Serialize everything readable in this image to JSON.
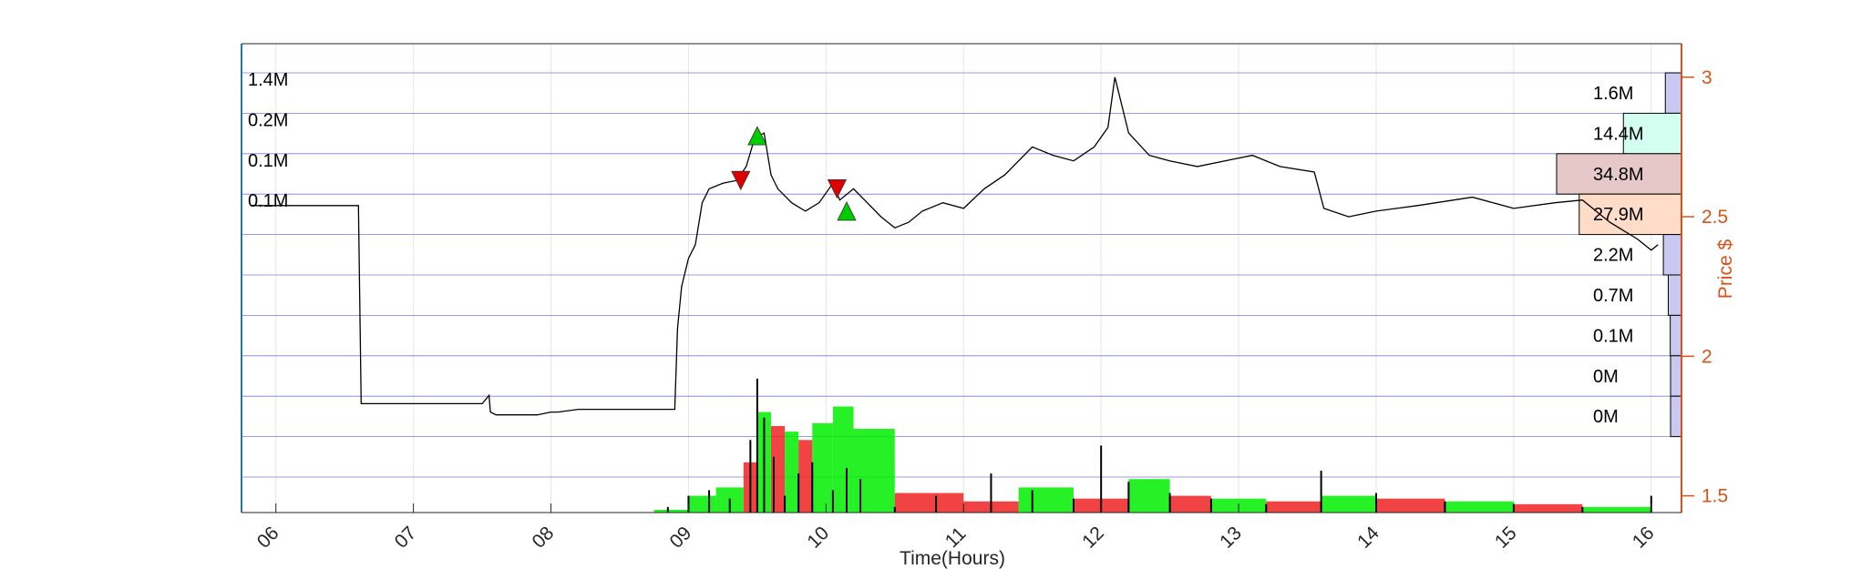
{
  "chart_data": {
    "type": "line",
    "xlabel": "Time(Hours)",
    "ylabel": "Price $",
    "x_ticks": [
      "06",
      "07",
      "08",
      "09",
      "10",
      "11",
      "12",
      "13",
      "14",
      "15",
      "16"
    ],
    "xlim": [
      5.75,
      16.22
    ],
    "ylim": [
      1.44,
      3.12
    ],
    "y_ticks": [
      "1.5",
      "2",
      "2.5",
      "3"
    ],
    "price_series": {
      "name": "Price",
      "x": [
        5.82,
        6.15,
        6.6,
        6.62,
        7.2,
        7.5,
        7.55,
        7.56,
        7.6,
        7.65,
        7.9,
        8.0,
        8.05,
        8.2,
        8.5,
        8.9,
        8.92,
        8.95,
        9.0,
        9.05,
        9.1,
        9.15,
        9.25,
        9.35,
        9.42,
        9.48,
        9.55,
        9.6,
        9.65,
        9.75,
        9.85,
        9.95,
        10.05,
        10.1,
        10.2,
        10.3,
        10.4,
        10.5,
        10.6,
        10.7,
        10.85,
        11.0,
        11.15,
        11.3,
        11.5,
        11.65,
        11.8,
        11.95,
        12.05,
        12.1,
        12.2,
        12.35,
        12.5,
        12.7,
        12.9,
        13.1,
        13.3,
        13.55,
        13.62,
        13.8,
        14.0,
        14.3,
        14.7,
        15.0,
        15.3,
        15.5,
        15.7,
        15.9,
        16.0,
        16.05
      ],
      "y": [
        2.54,
        2.54,
        2.54,
        1.83,
        1.83,
        1.83,
        1.86,
        1.8,
        1.79,
        1.79,
        1.79,
        1.8,
        1.8,
        1.81,
        1.81,
        1.81,
        2.1,
        2.25,
        2.35,
        2.4,
        2.55,
        2.6,
        2.62,
        2.63,
        2.68,
        2.78,
        2.8,
        2.65,
        2.6,
        2.55,
        2.52,
        2.55,
        2.62,
        2.56,
        2.6,
        2.55,
        2.5,
        2.46,
        2.48,
        2.52,
        2.55,
        2.53,
        2.6,
        2.65,
        2.75,
        2.72,
        2.7,
        2.75,
        2.82,
        3.0,
        2.8,
        2.72,
        2.7,
        2.68,
        2.7,
        2.72,
        2.68,
        2.66,
        2.53,
        2.5,
        2.52,
        2.54,
        2.57,
        2.53,
        2.55,
        2.56,
        2.48,
        2.42,
        2.38,
        2.4
      ]
    },
    "trade_markers": [
      {
        "type": "buy",
        "x": 9.5,
        "y": 2.79,
        "color": "#00cc00"
      },
      {
        "type": "sell",
        "x": 9.38,
        "y": 2.63,
        "color": "#dd0000"
      },
      {
        "type": "sell",
        "x": 10.08,
        "y": 2.6,
        "color": "#dd0000"
      },
      {
        "type": "buy",
        "x": 10.15,
        "y": 2.52,
        "color": "#00cc00"
      }
    ],
    "volume_profile": {
      "rows": [
        {
          "left_label": "1.4M",
          "right_label": "1.6M"
        },
        {
          "left_label": "0.2M",
          "right_label": "14.4M"
        },
        {
          "left_label": "0.1M",
          "right_label": "34.8M"
        },
        {
          "left_label": "0.1M",
          "right_label": "27.9M"
        },
        {
          "left_label": "",
          "right_label": "2.2M"
        },
        {
          "left_label": "",
          "right_label": "0.7M"
        },
        {
          "left_label": "",
          "right_label": "0.1M"
        },
        {
          "left_label": "",
          "right_label": "0M"
        },
        {
          "left_label": "",
          "right_label": "0M"
        }
      ],
      "right_values_m": [
        1.6,
        14.4,
        34.8,
        27.9,
        2.2,
        0.7,
        0.1,
        0,
        0
      ],
      "left_values_m": [
        1.4,
        0.2,
        0.1,
        0.1,
        0,
        0,
        0,
        0,
        0
      ],
      "fill_colors": [
        "#c8c8f0",
        "#d2fff0",
        "#e6c8c8",
        "#ffdcc8",
        "#c8c8f0",
        "#c8c8f0",
        "#c8c8f0",
        "#c8c8f0",
        "#c8c8f0"
      ]
    },
    "volume_bars": {
      "x": [
        8.85,
        9.0,
        9.15,
        9.3,
        9.45,
        9.5,
        9.55,
        9.62,
        9.7,
        9.8,
        9.9,
        10.05,
        10.15,
        10.25,
        10.5,
        10.8,
        11.2,
        11.5,
        11.8,
        12.0,
        12.2,
        12.5,
        12.8,
        13.2,
        13.6,
        14.0,
        14.5,
        15.0,
        15.5,
        16.0
      ],
      "y": [
        1.46,
        1.5,
        1.52,
        1.49,
        1.7,
        1.92,
        1.78,
        1.64,
        1.5,
        1.58,
        1.62,
        1.52,
        1.6,
        1.56,
        1.46,
        1.5,
        1.58,
        1.52,
        1.49,
        1.68,
        1.55,
        1.51,
        1.49,
        1.47,
        1.59,
        1.51,
        1.48,
        1.47,
        1.46,
        1.5
      ]
    },
    "vwap_blocks": {
      "x_start": [
        8.75,
        9.0,
        9.2,
        9.4,
        9.5,
        9.6,
        9.7,
        9.8,
        9.9,
        10.05,
        10.2,
        10.5,
        11.0,
        11.4,
        11.8,
        12.2,
        12.5,
        12.8,
        13.2,
        13.6,
        14.0,
        14.5,
        15.0,
        15.5
      ],
      "x_end": [
        9.0,
        9.2,
        9.4,
        9.5,
        9.6,
        9.7,
        9.8,
        9.9,
        10.05,
        10.2,
        10.5,
        11.0,
        11.4,
        11.8,
        12.2,
        12.5,
        12.8,
        13.2,
        13.6,
        14.0,
        14.5,
        15.0,
        15.5,
        16.0
      ],
      "y": [
        1.45,
        1.5,
        1.53,
        1.62,
        1.8,
        1.75,
        1.73,
        1.7,
        1.76,
        1.82,
        1.74,
        1.51,
        1.48,
        1.53,
        1.49,
        1.56,
        1.5,
        1.49,
        1.48,
        1.5,
        1.49,
        1.48,
        1.47,
        1.46
      ],
      "colors": [
        "#00ee00",
        "#00ee00",
        "#00ee00",
        "#ee2222",
        "#00ee00",
        "#ee2222",
        "#00ee00",
        "#ee2222",
        "#00ee00",
        "#00ee00",
        "#00ee00",
        "#ee2222",
        "#ee2222",
        "#00ee00",
        "#ee2222",
        "#00ee00",
        "#ee2222",
        "#00ee00",
        "#ee2222",
        "#00ee00",
        "#ee2222",
        "#00ee00",
        "#ee2222",
        "#00ee00"
      ]
    },
    "colors": {
      "price_line": "#000000",
      "right_axis": "#d95319",
      "left_axis_line": "#1f77b4",
      "grid": "#e6e6e6",
      "profile_line": "#4444cc"
    },
    "grid": true
  }
}
